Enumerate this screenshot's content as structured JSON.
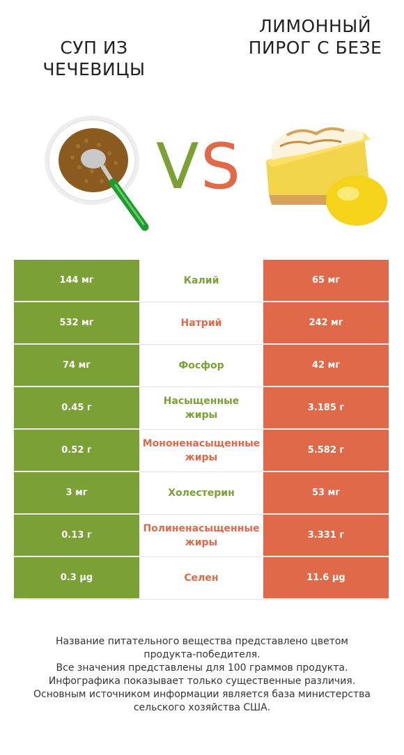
{
  "header": {
    "left_title": "СУП ИЗ ЧЕЧЕВИЦЫ",
    "right_title": "ЛИМОННЫЙ ПИРОГ С БЕЗЕ",
    "vs_v": "V",
    "vs_s": "S"
  },
  "colors": {
    "left": "#7ba036",
    "right": "#e0694a"
  },
  "rows": [
    {
      "left": "144 мг",
      "name": "Калий",
      "right": "65 мг",
      "winner": "left"
    },
    {
      "left": "532 мг",
      "name": "Натрий",
      "right": "242 мг",
      "winner": "right"
    },
    {
      "left": "74 мг",
      "name": "Фосфор",
      "right": "42 мг",
      "winner": "left"
    },
    {
      "left": "0.45 г",
      "name": "Насыщенные\nжиры",
      "right": "3.185 г",
      "winner": "left"
    },
    {
      "left": "0.52 г",
      "name": "Мононенасыщенные\nжиры",
      "right": "5.582 г",
      "winner": "right"
    },
    {
      "left": "3 мг",
      "name": "Холестерин",
      "right": "53 мг",
      "winner": "left"
    },
    {
      "left": "0.13 г",
      "name": "Полиненасыщенные\nжиры",
      "right": "3.331 г",
      "winner": "right"
    },
    {
      "left": "0.3 µg",
      "name": "Селен",
      "right": "11.6 µg",
      "winner": "right"
    }
  ],
  "footer": {
    "line1": "Название питательного вещества представлено цветом",
    "line2": "продукта-победителя.",
    "line3": "Все значения представлены для 100 граммов продукта.",
    "line4": "Инфографика показывает только существенные различия.",
    "line5": "Основным источником информации является база министерства",
    "line6": "сельского хозяйства США."
  }
}
